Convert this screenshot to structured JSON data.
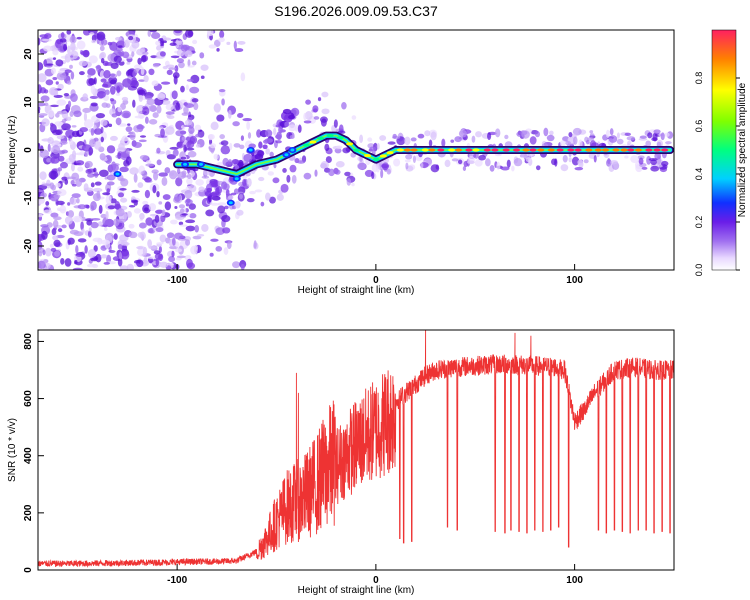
{
  "title": "S196.2026.009.09.53.C37",
  "chart_data": [
    {
      "type": "heatmap",
      "title": "S196.2026.009.09.53.C37",
      "xlabel": "Height of straight line (km)",
      "ylabel": "Frequency (Hz)",
      "xlim": [
        -170,
        150
      ],
      "ylim": [
        -25,
        25
      ],
      "xticks": [
        -100,
        0,
        100
      ],
      "yticks": [
        -20,
        -10,
        0,
        10,
        20
      ],
      "track": {
        "x": [
          -100,
          -90,
          -80,
          -70,
          -60,
          -50,
          -40,
          -30,
          -25,
          -20,
          -15,
          -10,
          -5,
          0,
          5,
          10,
          20,
          40,
          60,
          80,
          100,
          120,
          148
        ],
        "freq": [
          -3,
          -3,
          -4,
          -5,
          -3,
          -2,
          0,
          2,
          3,
          3,
          2,
          0,
          -1,
          -2,
          -1,
          0,
          0,
          0,
          0,
          0,
          0,
          0,
          0
        ]
      },
      "colorbar": {
        "label": "Normalized spectral amplitude",
        "range": [
          0.0,
          1.0
        ],
        "ticks": [
          "0.0",
          "0.2",
          "0.4",
          "0.6",
          "0.8"
        ],
        "colors": [
          "#ffffff",
          "#e8d8ff",
          "#a070f0",
          "#6a1ee8",
          "#1030ff",
          "#00d0ff",
          "#00ff80",
          "#80ff00",
          "#ffff00",
          "#ff8000",
          "#ff2060"
        ]
      }
    },
    {
      "type": "line",
      "xlabel": "Height of straight line (km)",
      "ylabel": "SNR (10 * v/v)",
      "xlim": [
        -170,
        150
      ],
      "ylim": [
        0,
        840
      ],
      "xticks": [
        -100,
        0,
        100
      ],
      "yticks": [
        0,
        200,
        400,
        600,
        800
      ],
      "series": [
        {
          "name": "SNR",
          "color": "#ee3333",
          "x": [
            -170,
            -150,
            -130,
            -110,
            -90,
            -80,
            -70,
            -60,
            -55,
            -50,
            -45,
            -40,
            -35,
            -30,
            -25,
            -20,
            -15,
            -10,
            -5,
            0,
            5,
            10,
            15,
            20,
            25,
            30,
            40,
            50,
            60,
            70,
            80,
            90,
            95,
            100,
            105,
            110,
            115,
            120,
            130,
            140,
            150
          ],
          "values": [
            18,
            18,
            20,
            22,
            25,
            25,
            28,
            60,
            110,
            170,
            220,
            240,
            260,
            300,
            350,
            390,
            430,
            470,
            500,
            530,
            560,
            590,
            620,
            650,
            680,
            700,
            710,
            715,
            720,
            720,
            715,
            710,
            700,
            520,
            560,
            620,
            660,
            700,
            710,
            700,
            700
          ]
        }
      ],
      "dips": [
        {
          "x": 12,
          "to": 110
        },
        {
          "x": 14,
          "to": 95
        },
        {
          "x": 18,
          "to": 100
        },
        {
          "x": 36,
          "to": 150
        },
        {
          "x": 41,
          "to": 140
        },
        {
          "x": 60,
          "to": 135
        },
        {
          "x": 65,
          "to": 130
        },
        {
          "x": 68,
          "to": 140
        },
        {
          "x": 72,
          "to": 135
        },
        {
          "x": 76,
          "to": 130
        },
        {
          "x": 80,
          "to": 140
        },
        {
          "x": 84,
          "to": 135
        },
        {
          "x": 88,
          "to": 140
        },
        {
          "x": 92,
          "to": 150
        },
        {
          "x": 97,
          "to": 80
        },
        {
          "x": 112,
          "to": 140
        },
        {
          "x": 116,
          "to": 130
        },
        {
          "x": 120,
          "to": 140
        },
        {
          "x": 124,
          "to": 135
        },
        {
          "x": 128,
          "to": 130
        },
        {
          "x": 132,
          "to": 140
        },
        {
          "x": 136,
          "to": 140
        },
        {
          "x": 140,
          "to": 130
        },
        {
          "x": 144,
          "to": 135
        },
        {
          "x": 148,
          "to": 130
        }
      ]
    }
  ]
}
